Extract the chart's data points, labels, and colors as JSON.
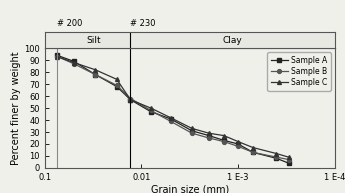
{
  "xlabel": "Grain size (mm)",
  "ylabel": "Percent finer by weight",
  "xlim_left": 0.1,
  "xlim_right": 0.0001,
  "ylim": [
    0,
    100
  ],
  "yticks": [
    0,
    10,
    20,
    30,
    40,
    50,
    60,
    70,
    80,
    90,
    100
  ],
  "xtick_vals": [
    0.1,
    0.01,
    0.001,
    0.0001
  ],
  "xtick_labels": [
    "0.1",
    "0.01",
    "1 E-3",
    "1 E-4"
  ],
  "vline_200": 0.074,
  "vline_230": 0.013,
  "label_200": "# 200",
  "label_230": "# 230",
  "region_silt": "Silt",
  "region_clay": "Clay",
  "sample_A": {
    "x": [
      0.074,
      0.05,
      0.03,
      0.018,
      0.013,
      0.008,
      0.005,
      0.003,
      0.002,
      0.0014,
      0.001,
      0.0007,
      0.0004,
      0.0003
    ],
    "y": [
      94,
      89,
      78,
      68,
      57,
      47,
      41,
      31,
      27,
      23,
      20,
      13,
      8,
      4
    ],
    "color": "#222222",
    "marker": "s",
    "label": "Sample A"
  },
  "sample_B": {
    "x": [
      0.074,
      0.05,
      0.03,
      0.018,
      0.013,
      0.008,
      0.005,
      0.003,
      0.002,
      0.0014,
      0.001,
      0.0007,
      0.0004,
      0.0003
    ],
    "y": [
      93,
      87,
      78,
      69,
      58,
      48,
      39,
      29,
      25,
      22,
      18,
      13,
      9,
      7
    ],
    "color": "#555555",
    "marker": "o",
    "label": "Sample B"
  },
  "sample_C": {
    "x": [
      0.074,
      0.05,
      0.03,
      0.018,
      0.013,
      0.008,
      0.005,
      0.003,
      0.002,
      0.0014,
      0.001,
      0.0007,
      0.0004,
      0.0003
    ],
    "y": [
      93,
      88,
      82,
      74,
      57,
      50,
      42,
      33,
      29,
      27,
      22,
      17,
      12,
      9
    ],
    "color": "#333333",
    "marker": "^",
    "label": "Sample C"
  },
  "background": "#f0f0eb",
  "silt_band_color": "#e8e8e4",
  "vline_color_200": "#888888",
  "vline_color_230": "#000000"
}
